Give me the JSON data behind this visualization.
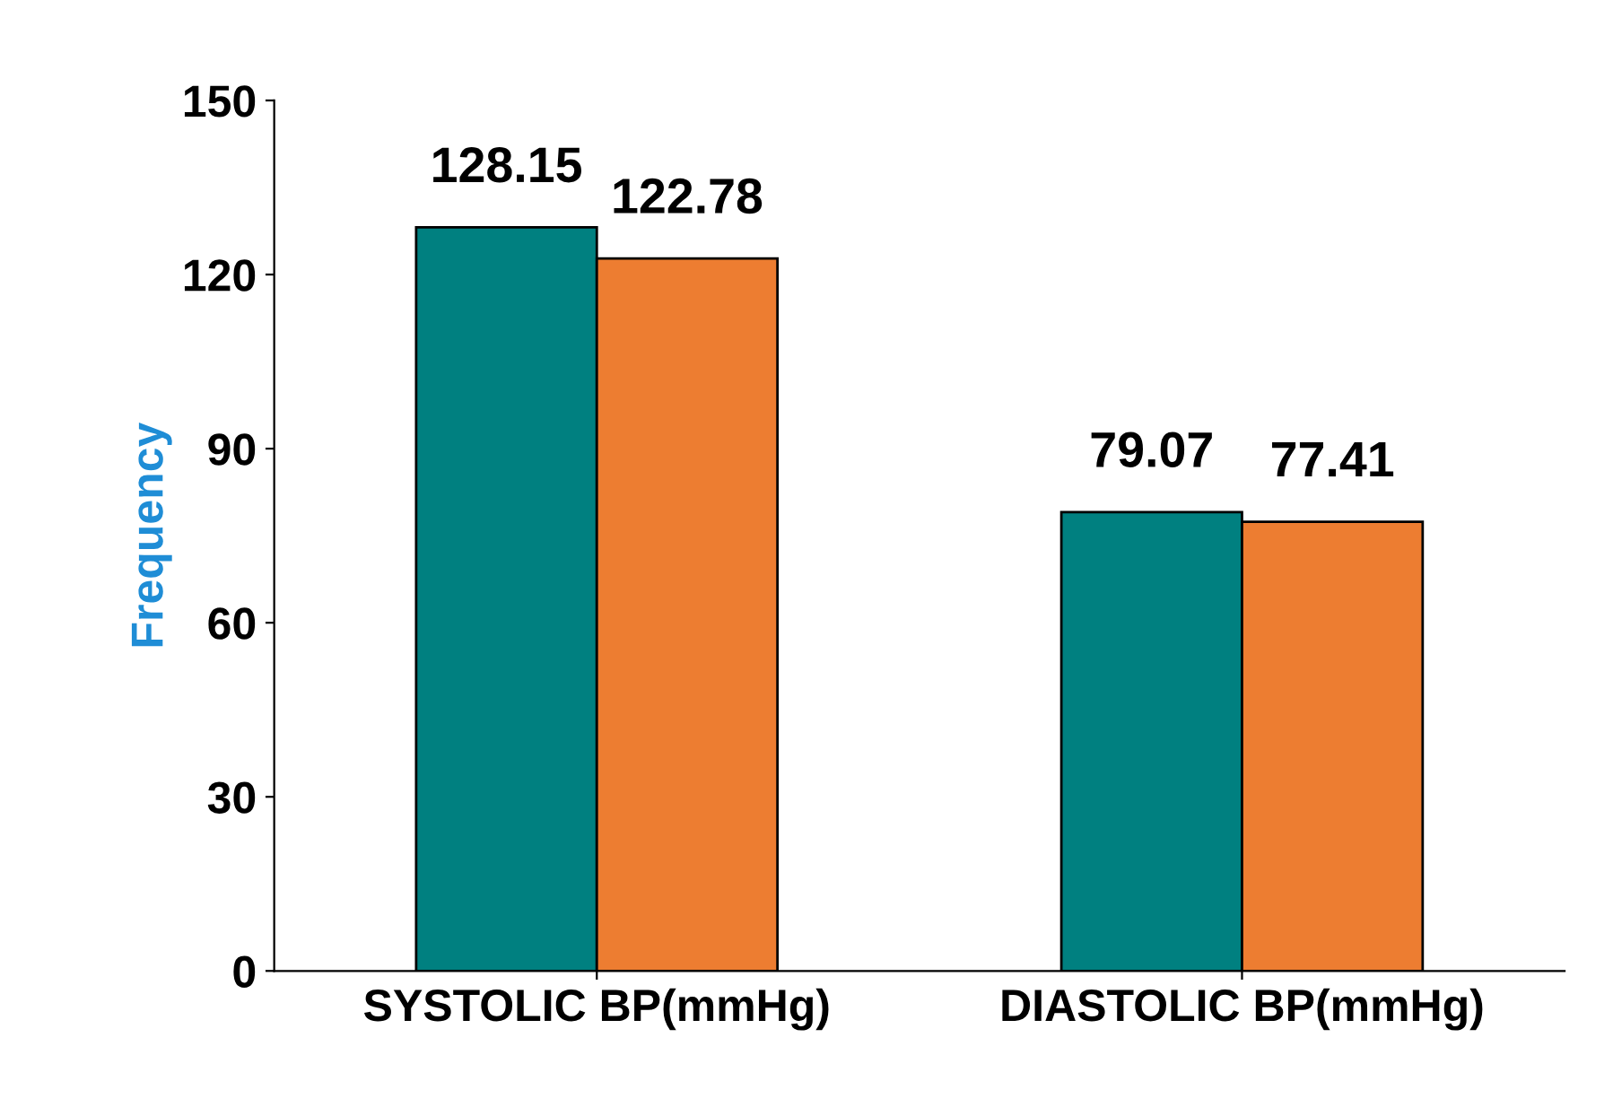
{
  "chart_data": {
    "type": "bar",
    "categories": [
      "SYSTOLIC BP(mmHg)",
      "DIASTOLIC BP(mmHg)"
    ],
    "series": [
      {
        "color": "#008080",
        "values": [
          128.15,
          79.07
        ]
      },
      {
        "color": "#ed7d31",
        "values": [
          122.78,
          77.41
        ]
      }
    ],
    "ylabel": "Frequency",
    "ylim": [
      0,
      150
    ],
    "yticks": [
      0,
      30,
      60,
      90,
      120,
      150
    ],
    "data_labels": true,
    "grid": false,
    "legend": false
  }
}
